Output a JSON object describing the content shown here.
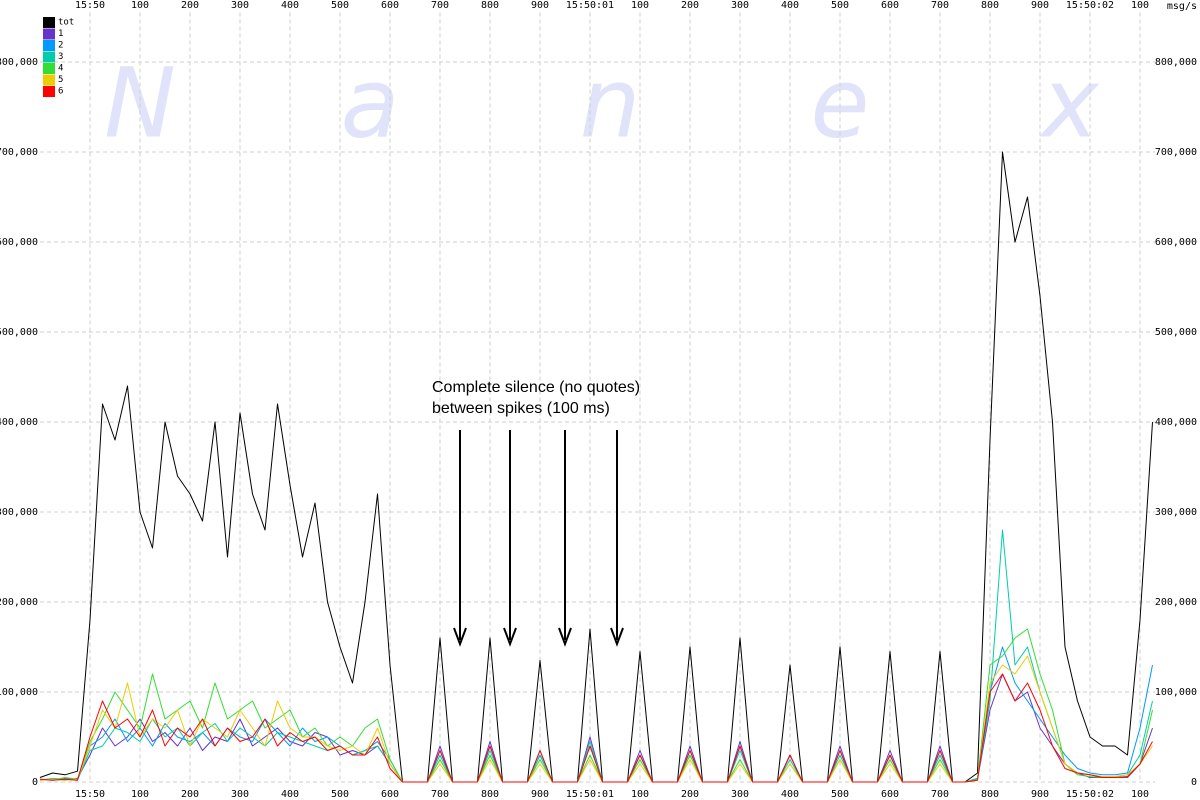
{
  "chart_data": {
    "type": "line",
    "unit_label": "msg/s",
    "watermark": [
      "N",
      "a",
      "n",
      "e",
      "x"
    ],
    "annotation": [
      "Complete silence (no quotes)",
      "between spikes (100 ms)"
    ],
    "legend": "top-left",
    "grid": true,
    "xlim": [
      -100,
      2130
    ],
    "ylim": [
      0,
      855000
    ],
    "xticks": [
      {
        "value": 0,
        "label": "15:50"
      },
      100,
      200,
      300,
      400,
      500,
      600,
      700,
      800,
      900,
      {
        "value": 1000,
        "label": "15:50:01"
      },
      {
        "value": 1100,
        "label": "100"
      },
      {
        "value": 1200,
        "label": "200"
      },
      {
        "value": 1300,
        "label": "300"
      },
      {
        "value": 1400,
        "label": "400"
      },
      {
        "value": 1500,
        "label": "500"
      },
      {
        "value": 1600,
        "label": "600"
      },
      {
        "value": 1700,
        "label": "700"
      },
      {
        "value": 1800,
        "label": "800"
      },
      {
        "value": 1900,
        "label": "900"
      },
      {
        "value": 2000,
        "label": "15:50:02"
      },
      {
        "value": 2100,
        "label": "100"
      }
    ],
    "yticks": [
      0,
      {
        "value": 100000,
        "label": "100,000"
      },
      {
        "value": 200000,
        "label": "200,000"
      },
      {
        "value": 300000,
        "label": "300,000"
      },
      {
        "value": 400000,
        "label": "400,000"
      },
      {
        "value": 500000,
        "label": "500,000"
      },
      {
        "value": 600000,
        "label": "600,000"
      },
      {
        "value": 700000,
        "label": "700,000"
      },
      {
        "value": 800000,
        "label": "800,000"
      }
    ],
    "x": [
      -100,
      -75,
      -50,
      -25,
      0,
      25,
      50,
      75,
      100,
      125,
      150,
      175,
      200,
      225,
      250,
      275,
      300,
      325,
      350,
      375,
      400,
      425,
      450,
      475,
      500,
      525,
      550,
      575,
      600,
      625,
      650,
      675,
      700,
      725,
      750,
      775,
      800,
      825,
      850,
      875,
      900,
      925,
      950,
      975,
      1000,
      1025,
      1050,
      1075,
      1100,
      1125,
      1150,
      1175,
      1200,
      1225,
      1250,
      1275,
      1300,
      1325,
      1350,
      1375,
      1400,
      1425,
      1450,
      1475,
      1500,
      1525,
      1550,
      1575,
      1600,
      1625,
      1650,
      1675,
      1700,
      1725,
      1750,
      1775,
      1800,
      1825,
      1850,
      1875,
      1900,
      1925,
      1950,
      1975,
      2000,
      2025,
      2050,
      2075,
      2100,
      2125
    ],
    "series": [
      {
        "name": "tot",
        "color": "#000000",
        "values": [
          5000,
          10000,
          8000,
          12000,
          180000,
          420000,
          380000,
          440000,
          300000,
          260000,
          400000,
          340000,
          320000,
          290000,
          400000,
          250000,
          410000,
          320000,
          280000,
          420000,
          330000,
          250000,
          310000,
          200000,
          150000,
          110000,
          200000,
          320000,
          130000,
          0,
          0,
          0,
          160000,
          0,
          0,
          0,
          160000,
          0,
          0,
          0,
          135000,
          0,
          0,
          0,
          170000,
          0,
          0,
          0,
          145000,
          0,
          0,
          0,
          150000,
          0,
          0,
          0,
          160000,
          0,
          0,
          0,
          130000,
          0,
          0,
          0,
          150000,
          0,
          0,
          0,
          145000,
          0,
          0,
          0,
          145000,
          0,
          0,
          10000,
          380000,
          700000,
          600000,
          650000,
          540000,
          400000,
          150000,
          90000,
          50000,
          40000,
          40000,
          30000,
          180000,
          400000
        ]
      },
      {
        "name": "1",
        "color": "#6633cc",
        "values": [
          2000,
          3000,
          2000,
          4000,
          30000,
          60000,
          40000,
          50000,
          70000,
          45000,
          55000,
          40000,
          60000,
          35000,
          50000,
          45000,
          70000,
          40000,
          50000,
          60000,
          45000,
          40000,
          55000,
          50000,
          30000,
          35000,
          30000,
          40000,
          20000,
          0,
          0,
          0,
          40000,
          0,
          0,
          0,
          45000,
          0,
          0,
          0,
          30000,
          0,
          0,
          0,
          50000,
          0,
          0,
          0,
          35000,
          0,
          0,
          0,
          40000,
          0,
          0,
          0,
          45000,
          0,
          0,
          0,
          30000,
          0,
          0,
          0,
          40000,
          0,
          0,
          0,
          35000,
          0,
          0,
          0,
          40000,
          0,
          0,
          3000,
          80000,
          120000,
          90000,
          100000,
          60000,
          40000,
          20000,
          10000,
          5000,
          5000,
          5000,
          5000,
          20000,
          60000
        ]
      },
      {
        "name": "2",
        "color": "#0099ff",
        "values": [
          3000,
          2000,
          4000,
          3000,
          40000,
          50000,
          70000,
          45000,
          60000,
          40000,
          65000,
          50000,
          45000,
          55000,
          40000,
          60000,
          50000,
          45000,
          70000,
          55000,
          40000,
          60000,
          45000,
          50000,
          40000,
          30000,
          35000,
          45000,
          25000,
          0,
          0,
          0,
          35000,
          0,
          0,
          0,
          40000,
          0,
          0,
          0,
          35000,
          0,
          0,
          0,
          40000,
          0,
          0,
          0,
          30000,
          0,
          0,
          0,
          35000,
          0,
          0,
          0,
          40000,
          0,
          0,
          0,
          30000,
          0,
          0,
          0,
          35000,
          0,
          0,
          0,
          30000,
          0,
          0,
          0,
          35000,
          0,
          0,
          4000,
          100000,
          150000,
          110000,
          90000,
          70000,
          50000,
          30000,
          15000,
          10000,
          8000,
          8000,
          10000,
          60000,
          130000
        ]
      },
      {
        "name": "3",
        "color": "#00ccaa",
        "values": [
          2000,
          4000,
          3000,
          2000,
          35000,
          40000,
          60000,
          55000,
          45000,
          70000,
          50000,
          60000,
          40000,
          55000,
          65000,
          45000,
          60000,
          50000,
          40000,
          55000,
          50000,
          45000,
          40000,
          35000,
          40000,
          30000,
          35000,
          40000,
          20000,
          0,
          0,
          0,
          30000,
          0,
          0,
          0,
          35000,
          0,
          0,
          0,
          30000,
          0,
          0,
          0,
          45000,
          0,
          0,
          0,
          30000,
          0,
          0,
          0,
          30000,
          0,
          0,
          0,
          35000,
          0,
          0,
          0,
          25000,
          0,
          0,
          0,
          30000,
          0,
          0,
          0,
          30000,
          0,
          0,
          0,
          30000,
          0,
          0,
          3000,
          90000,
          280000,
          130000,
          150000,
          100000,
          60000,
          20000,
          10000,
          8000,
          6000,
          6000,
          8000,
          30000,
          90000
        ]
      },
      {
        "name": "4",
        "color": "#33dd33",
        "values": [
          3000,
          2000,
          5000,
          3000,
          45000,
          70000,
          100000,
          80000,
          60000,
          120000,
          70000,
          80000,
          90000,
          60000,
          110000,
          70000,
          80000,
          90000,
          60000,
          70000,
          80000,
          50000,
          60000,
          40000,
          50000,
          40000,
          60000,
          70000,
          25000,
          0,
          0,
          0,
          25000,
          0,
          0,
          0,
          30000,
          0,
          0,
          0,
          25000,
          0,
          0,
          0,
          30000,
          0,
          0,
          0,
          25000,
          0,
          0,
          0,
          30000,
          0,
          0,
          0,
          25000,
          0,
          0,
          0,
          20000,
          0,
          0,
          0,
          25000,
          0,
          0,
          0,
          25000,
          0,
          0,
          0,
          25000,
          0,
          0,
          3000,
          130000,
          140000,
          160000,
          170000,
          120000,
          80000,
          20000,
          8000,
          6000,
          5000,
          5000,
          6000,
          20000,
          80000
        ]
      },
      {
        "name": "5",
        "color": "#eecc00",
        "values": [
          2000,
          3000,
          2000,
          3000,
          40000,
          80000,
          60000,
          110000,
          50000,
          70000,
          60000,
          80000,
          40000,
          70000,
          60000,
          50000,
          80000,
          60000,
          40000,
          90000,
          60000,
          50000,
          50000,
          40000,
          35000,
          40000,
          30000,
          60000,
          20000,
          0,
          0,
          0,
          20000,
          0,
          0,
          0,
          25000,
          0,
          0,
          0,
          20000,
          0,
          0,
          0,
          25000,
          0,
          0,
          0,
          20000,
          0,
          0,
          0,
          25000,
          0,
          0,
          0,
          20000,
          0,
          0,
          0,
          20000,
          0,
          0,
          0,
          25000,
          0,
          0,
          0,
          20000,
          0,
          0,
          0,
          20000,
          0,
          0,
          2000,
          110000,
          130000,
          120000,
          140000,
          100000,
          60000,
          20000,
          10000,
          8000,
          6000,
          6000,
          8000,
          20000,
          40000
        ]
      },
      {
        "name": "6",
        "color": "#ff0000",
        "values": [
          3000,
          2000,
          3000,
          2000,
          50000,
          90000,
          60000,
          70000,
          50000,
          80000,
          40000,
          60000,
          50000,
          70000,
          40000,
          60000,
          45000,
          50000,
          70000,
          40000,
          55000,
          45000,
          50000,
          35000,
          40000,
          30000,
          30000,
          50000,
          15000,
          0,
          0,
          0,
          35000,
          0,
          0,
          0,
          40000,
          0,
          0,
          0,
          35000,
          0,
          0,
          0,
          40000,
          0,
          0,
          0,
          30000,
          0,
          0,
          0,
          35000,
          0,
          0,
          0,
          40000,
          0,
          0,
          0,
          30000,
          0,
          0,
          0,
          35000,
          0,
          0,
          0,
          30000,
          0,
          0,
          0,
          35000,
          0,
          0,
          2000,
          100000,
          120000,
          90000,
          110000,
          80000,
          40000,
          15000,
          10000,
          8000,
          5000,
          5000,
          6000,
          20000,
          45000
        ]
      }
    ]
  }
}
